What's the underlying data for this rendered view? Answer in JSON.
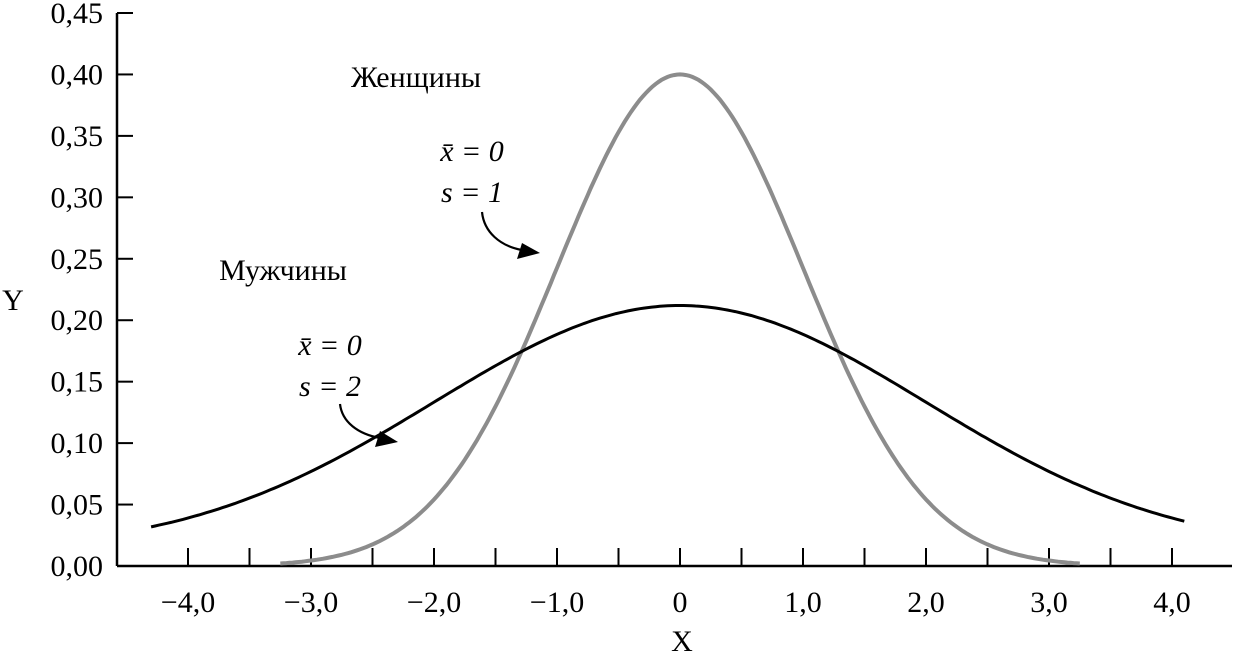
{
  "chart_data": {
    "type": "line",
    "xlabel": "X",
    "ylabel": "Y",
    "xlim": [
      -4.5,
      4.5
    ],
    "ylim": [
      0,
      0.45
    ],
    "x_ticks": [
      -4.0,
      -3.5,
      -3.0,
      -2.5,
      -2.0,
      -1.5,
      -1.0,
      -0.5,
      0,
      0.5,
      1.0,
      1.5,
      2.0,
      2.5,
      3.0,
      3.5,
      4.0
    ],
    "x_tick_labels": [
      {
        "value": -4.0,
        "label": "−4,0"
      },
      {
        "value": -3.0,
        "label": "−3,0"
      },
      {
        "value": -2.0,
        "label": "−2,0"
      },
      {
        "value": -1.0,
        "label": "−1,0"
      },
      {
        "value": 0,
        "label": "0"
      },
      {
        "value": 1.0,
        "label": "1,0"
      },
      {
        "value": 2.0,
        "label": "2,0"
      },
      {
        "value": 3.0,
        "label": "3,0"
      },
      {
        "value": 4.0,
        "label": "4,0"
      }
    ],
    "y_ticks": [
      {
        "value": 0.0,
        "label": "0,00"
      },
      {
        "value": 0.05,
        "label": "0,05"
      },
      {
        "value": 0.1,
        "label": "0,10"
      },
      {
        "value": 0.15,
        "label": "0,15"
      },
      {
        "value": 0.2,
        "label": "0,20"
      },
      {
        "value": 0.25,
        "label": "0,25"
      },
      {
        "value": 0.3,
        "label": "0,30"
      },
      {
        "value": 0.35,
        "label": "0,35"
      },
      {
        "value": 0.4,
        "label": "0,40"
      },
      {
        "value": 0.45,
        "label": "0,45"
      }
    ],
    "series": [
      {
        "name": "Женщины",
        "color": "#8c8c8c",
        "mean": 0,
        "sd": 1,
        "x_range": [
          -3.25,
          3.25
        ],
        "peak_y": 0.4,
        "mean_label": "x̄ = 0",
        "sd_label": "s = 1"
      },
      {
        "name": "Мужчины",
        "color": "#000000",
        "mean": 0,
        "sd": 2,
        "x_range": [
          -4.3,
          4.1
        ],
        "peak_y": 0.2,
        "mean_label": "x̄ = 0",
        "sd_label": "s = 2"
      }
    ],
    "grid": false
  }
}
